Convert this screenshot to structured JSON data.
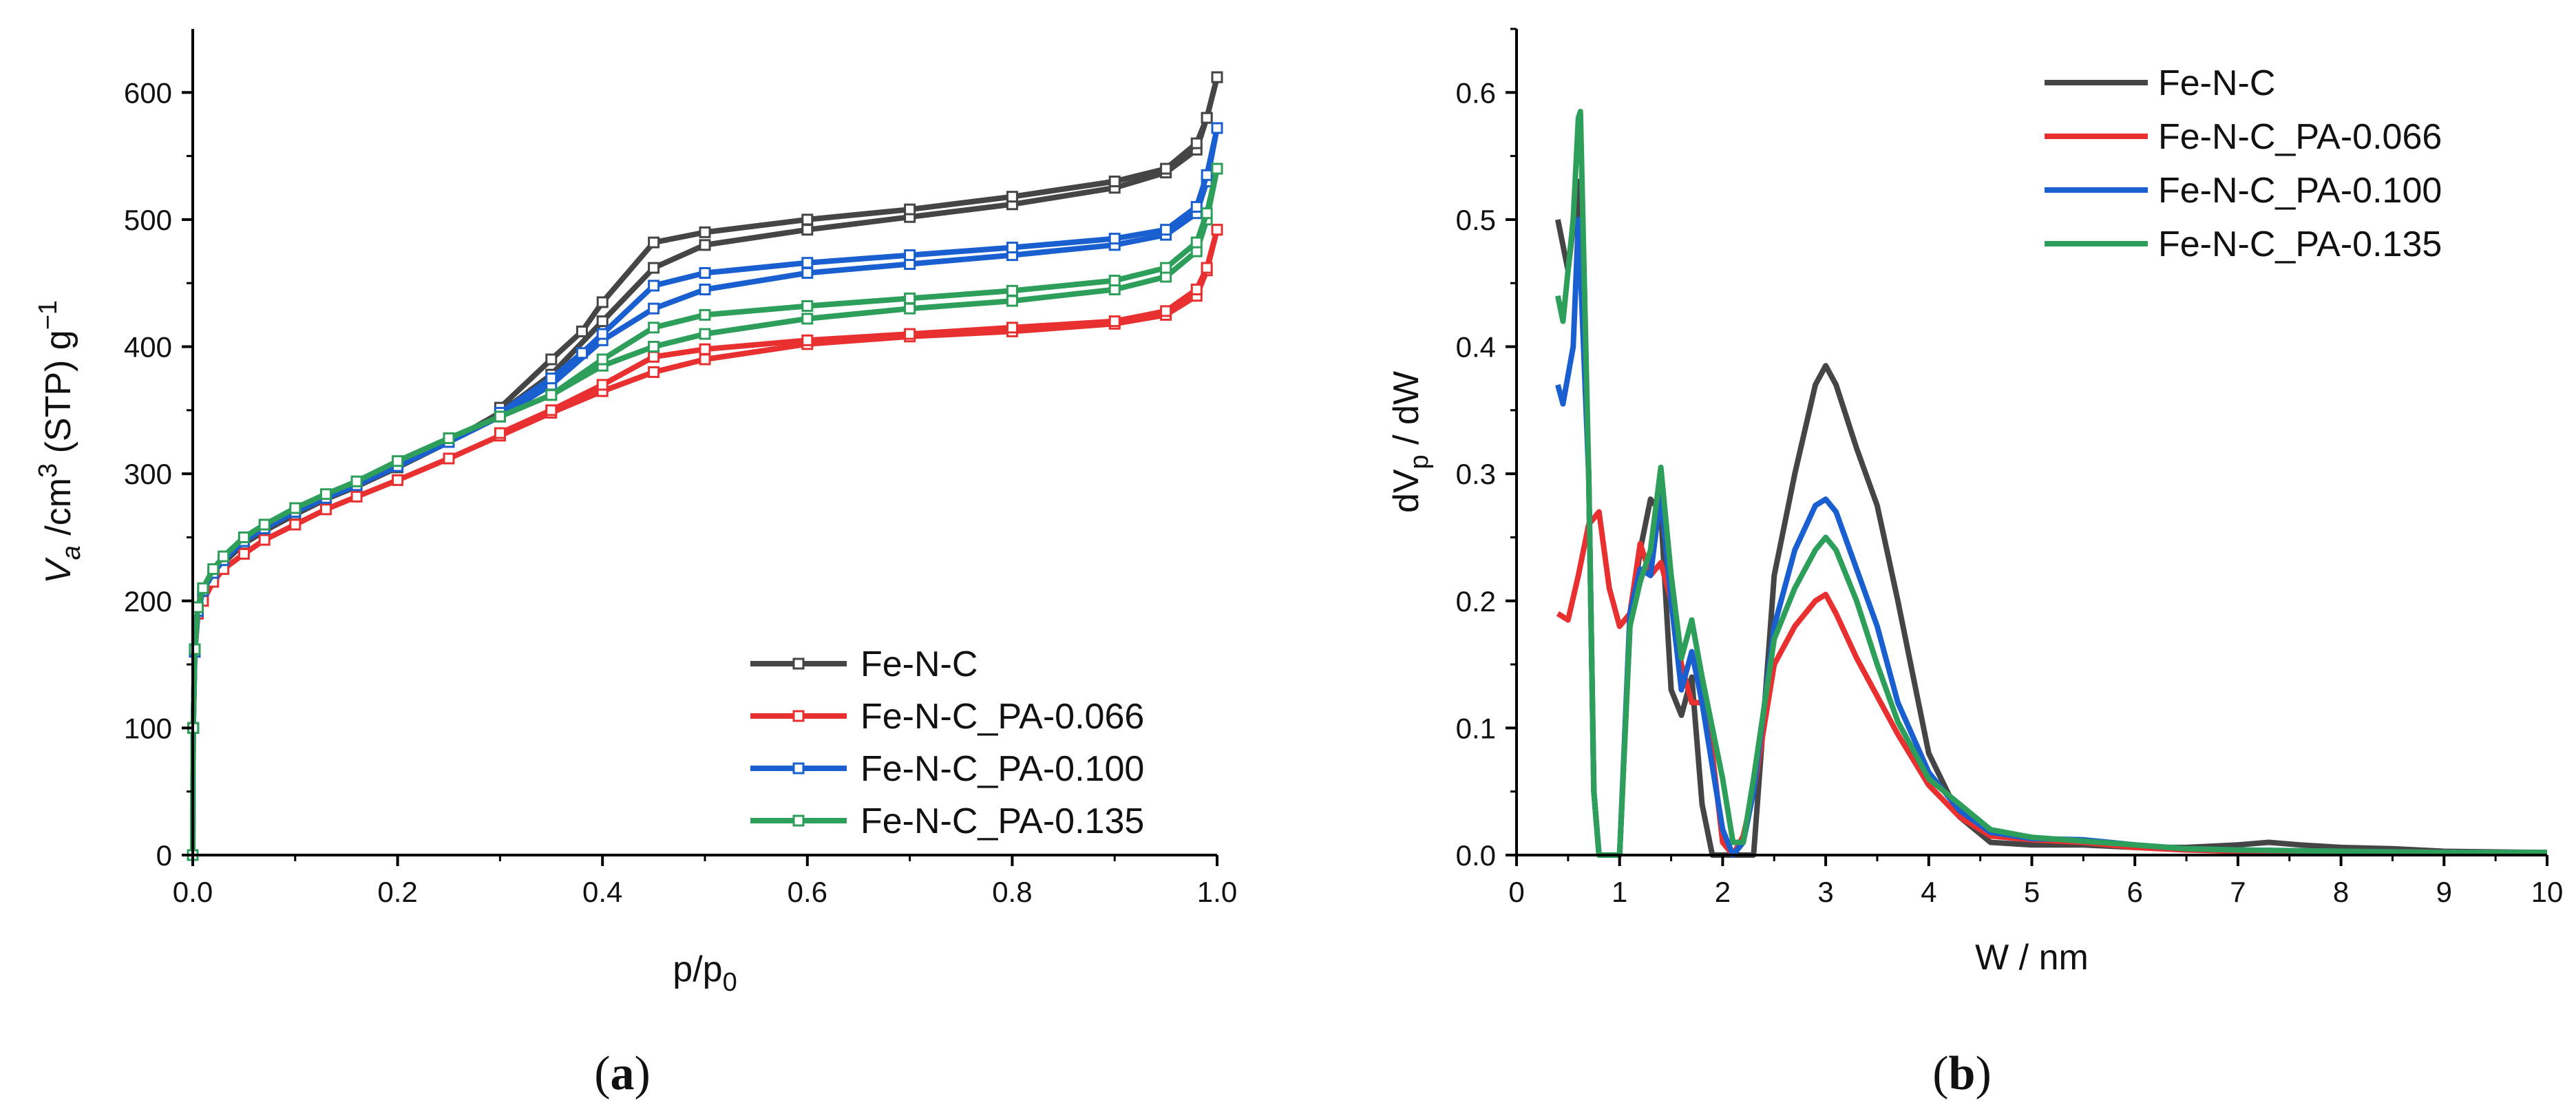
{
  "chart_data": [
    {
      "panel": "a",
      "type": "line",
      "caption_letter": "a",
      "xlabel_main": "p/p",
      "xlabel_sub": "0",
      "ylabel_parts": [
        "V",
        "a",
        " /cm",
        "3",
        " (STP) g",
        "−1"
      ],
      "xlim": [
        0,
        1.0
      ],
      "ylim": [
        0,
        650
      ],
      "xticks": [
        "0.0",
        "0.2",
        "0.4",
        "0.6",
        "0.8",
        "1.0"
      ],
      "yticks": [
        "0",
        "100",
        "200",
        "300",
        "400",
        "500",
        "600"
      ],
      "legend_position": "bottom-right",
      "series": [
        {
          "name": "Fe-N-C",
          "color": "#454545",
          "adsorption": {
            "x": [
              0,
              0.0005,
              0.002,
              0.005,
              0.01,
              0.02,
              0.03,
              0.05,
              0.07,
              0.1,
              0.13,
              0.16,
              0.2,
              0.25,
              0.3,
              0.35,
              0.4,
              0.45,
              0.5,
              0.6,
              0.7,
              0.8,
              0.9,
              0.95,
              0.98,
              0.99,
              1.0
            ],
            "y": [
              0,
              100,
              160,
              190,
              205,
              220,
              230,
              245,
              255,
              268,
              280,
              290,
              305,
              325,
              348,
              378,
              420,
              462,
              480,
              492,
              502,
              512,
              525,
              537,
              555,
              580,
              612
            ]
          },
          "desorption": {
            "x": [
              1.0,
              0.99,
              0.98,
              0.95,
              0.9,
              0.8,
              0.7,
              0.6,
              0.5,
              0.45,
              0.4,
              0.38,
              0.35,
              0.3
            ],
            "y": [
              612,
              580,
              560,
              540,
              530,
              518,
              508,
              500,
              490,
              482,
              435,
              412,
              390,
              352
            ]
          }
        },
        {
          "name": "Fe-N-C_PA-0.066",
          "color": "#e83030",
          "adsorption": {
            "x": [
              0,
              0.0005,
              0.002,
              0.005,
              0.01,
              0.02,
              0.03,
              0.05,
              0.07,
              0.1,
              0.13,
              0.16,
              0.2,
              0.25,
              0.3,
              0.35,
              0.4,
              0.45,
              0.5,
              0.6,
              0.7,
              0.8,
              0.9,
              0.95,
              0.98,
              0.99,
              1.0
            ],
            "y": [
              0,
              100,
              160,
              190,
              200,
              215,
              225,
              237,
              248,
              260,
              272,
              282,
              295,
              312,
              330,
              348,
              365,
              380,
              390,
              402,
              408,
              412,
              418,
              425,
              440,
              460,
              492
            ]
          },
          "desorption": {
            "x": [
              1.0,
              0.99,
              0.98,
              0.95,
              0.9,
              0.8,
              0.7,
              0.6,
              0.5,
              0.45,
              0.4,
              0.35,
              0.3
            ],
            "y": [
              492,
              462,
              445,
              428,
              420,
              415,
              410,
              405,
              398,
              392,
              370,
              350,
              332
            ]
          }
        },
        {
          "name": "Fe-N-C_PA-0.100",
          "color": "#1a5fd0",
          "adsorption": {
            "x": [
              0,
              0.0005,
              0.002,
              0.005,
              0.01,
              0.02,
              0.03,
              0.05,
              0.07,
              0.1,
              0.13,
              0.16,
              0.2,
              0.25,
              0.3,
              0.35,
              0.4,
              0.45,
              0.5,
              0.6,
              0.7,
              0.8,
              0.9,
              0.95,
              0.98,
              0.99,
              1.0
            ],
            "y": [
              0,
              100,
              160,
              192,
              208,
              222,
              232,
              247,
              257,
              270,
              281,
              291,
              306,
              325,
              345,
              370,
              405,
              430,
              445,
              458,
              465,
              472,
              480,
              488,
              505,
              530,
              572
            ]
          },
          "desorption": {
            "x": [
              1.0,
              0.99,
              0.98,
              0.95,
              0.9,
              0.8,
              0.7,
              0.6,
              0.5,
              0.45,
              0.4,
              0.38,
              0.35,
              0.3
            ],
            "y": [
              572,
              535,
              510,
              492,
              485,
              478,
              472,
              466,
              458,
              448,
              410,
              395,
              375,
              348
            ]
          }
        },
        {
          "name": "Fe-N-C_PA-0.135",
          "color": "#2e9e5b",
          "adsorption": {
            "x": [
              0,
              0.0005,
              0.002,
              0.005,
              0.01,
              0.02,
              0.03,
              0.05,
              0.07,
              0.1,
              0.13,
              0.16,
              0.2,
              0.25,
              0.3,
              0.35,
              0.4,
              0.45,
              0.5,
              0.6,
              0.7,
              0.8,
              0.9,
              0.95,
              0.98,
              0.99,
              1.0
            ],
            "y": [
              0,
              100,
              162,
              195,
              210,
              225,
              235,
              250,
              260,
              273,
              284,
              294,
              310,
              328,
              345,
              362,
              385,
              400,
              410,
              422,
              430,
              436,
              445,
              455,
              475,
              500,
              540
            ]
          },
          "desorption": {
            "x": [
              1.0,
              0.99,
              0.98,
              0.95,
              0.9,
              0.8,
              0.7,
              0.6,
              0.5,
              0.45,
              0.4,
              0.35,
              0.3
            ],
            "y": [
              540,
              505,
              482,
              462,
              452,
              444,
              438,
              432,
              425,
              415,
              390,
              362,
              345
            ]
          }
        }
      ]
    },
    {
      "panel": "b",
      "type": "line",
      "caption_letter": "b",
      "xlabel": "W / nm",
      "ylabel_parts": [
        "dV",
        "p",
        " / dW"
      ],
      "xlim": [
        0,
        10
      ],
      "ylim": [
        0,
        0.65
      ],
      "xticks": [
        "0",
        "1",
        "2",
        "3",
        "4",
        "5",
        "6",
        "7",
        "8",
        "9",
        "10"
      ],
      "yticks": [
        "0.0",
        "0.1",
        "0.2",
        "0.3",
        "0.4",
        "0.5",
        "0.6"
      ],
      "legend_position": "top-right",
      "series": [
        {
          "name": "Fe-N-C",
          "color": "#454545",
          "x": [
            0.4,
            0.5,
            0.6,
            0.7,
            0.75,
            0.8,
            0.9,
            1.0,
            1.1,
            1.2,
            1.3,
            1.4,
            1.5,
            1.6,
            1.7,
            1.8,
            1.9,
            2.0,
            2.1,
            2.2,
            2.3,
            2.5,
            2.7,
            2.9,
            3.0,
            3.1,
            3.3,
            3.5,
            3.7,
            4.0,
            4.3,
            4.6,
            5.0,
            5.5,
            6.0,
            6.5,
            7.0,
            7.3,
            7.6,
            8.0,
            8.5,
            9.0,
            10.0
          ],
          "y": [
            0.5,
            0.46,
            0.53,
            0.3,
            0.05,
            0.0,
            0.0,
            0.0,
            0.18,
            0.24,
            0.28,
            0.27,
            0.13,
            0.11,
            0.14,
            0.04,
            0.0,
            0.0,
            0.0,
            0.0,
            0.0,
            0.22,
            0.3,
            0.37,
            0.385,
            0.37,
            0.32,
            0.275,
            0.2,
            0.08,
            0.03,
            0.01,
            0.008,
            0.008,
            0.006,
            0.006,
            0.008,
            0.01,
            0.008,
            0.006,
            0.005,
            0.003,
            0.002
          ]
        },
        {
          "name": "Fe-N-C_PA-0.066",
          "color": "#e83030",
          "x": [
            0.4,
            0.5,
            0.6,
            0.7,
            0.8,
            0.9,
            1.0,
            1.1,
            1.2,
            1.3,
            1.4,
            1.5,
            1.6,
            1.7,
            1.8,
            1.9,
            2.0,
            2.1,
            2.2,
            2.3,
            2.5,
            2.7,
            2.9,
            3.0,
            3.1,
            3.3,
            3.5,
            3.7,
            4.0,
            4.3,
            4.6,
            5.0,
            5.5,
            6.0,
            6.5,
            7.0,
            8.0,
            9.0,
            10.0
          ],
          "y": [
            0.19,
            0.185,
            0.22,
            0.26,
            0.27,
            0.21,
            0.18,
            0.19,
            0.245,
            0.22,
            0.23,
            0.2,
            0.15,
            0.12,
            0.12,
            0.08,
            0.01,
            0.0,
            0.015,
            0.05,
            0.15,
            0.18,
            0.2,
            0.205,
            0.19,
            0.155,
            0.125,
            0.095,
            0.055,
            0.03,
            0.015,
            0.012,
            0.01,
            0.006,
            0.004,
            0.003,
            0.003,
            0.002,
            0.002
          ]
        },
        {
          "name": "Fe-N-C_PA-0.100",
          "color": "#1a5fd0",
          "x": [
            0.4,
            0.45,
            0.55,
            0.6,
            0.7,
            0.75,
            0.8,
            0.9,
            1.0,
            1.1,
            1.2,
            1.3,
            1.4,
            1.5,
            1.6,
            1.7,
            1.8,
            1.9,
            2.0,
            2.1,
            2.2,
            2.3,
            2.5,
            2.7,
            2.9,
            3.0,
            3.1,
            3.3,
            3.5,
            3.7,
            4.0,
            4.3,
            4.6,
            5.0,
            5.5,
            6.0,
            6.5,
            7.0,
            8.0,
            9.0,
            10.0
          ],
          "y": [
            0.37,
            0.355,
            0.4,
            0.5,
            0.3,
            0.05,
            0.0,
            0.0,
            0.0,
            0.19,
            0.225,
            0.22,
            0.285,
            0.2,
            0.13,
            0.16,
            0.12,
            0.07,
            0.02,
            0.0,
            0.01,
            0.05,
            0.18,
            0.24,
            0.275,
            0.28,
            0.27,
            0.225,
            0.18,
            0.12,
            0.065,
            0.035,
            0.018,
            0.013,
            0.012,
            0.008,
            0.005,
            0.004,
            0.003,
            0.002,
            0.002
          ]
        },
        {
          "name": "Fe-N-C_PA-0.135",
          "color": "#2e9e5b",
          "x": [
            0.4,
            0.45,
            0.55,
            0.6,
            0.62,
            0.7,
            0.75,
            0.8,
            0.9,
            1.0,
            1.1,
            1.2,
            1.3,
            1.4,
            1.5,
            1.6,
            1.7,
            1.8,
            1.9,
            2.0,
            2.1,
            2.2,
            2.3,
            2.5,
            2.7,
            2.9,
            3.0,
            3.1,
            3.3,
            3.5,
            3.7,
            4.0,
            4.3,
            4.6,
            5.0,
            5.5,
            6.0,
            6.5,
            7.0,
            8.0,
            9.0,
            10.0
          ],
          "y": [
            0.44,
            0.42,
            0.5,
            0.58,
            0.585,
            0.3,
            0.05,
            0.0,
            0.0,
            0.0,
            0.18,
            0.215,
            0.24,
            0.305,
            0.22,
            0.155,
            0.185,
            0.14,
            0.1,
            0.06,
            0.01,
            0.01,
            0.06,
            0.17,
            0.21,
            0.24,
            0.25,
            0.24,
            0.2,
            0.15,
            0.105,
            0.06,
            0.04,
            0.02,
            0.014,
            0.011,
            0.008,
            0.005,
            0.004,
            0.003,
            0.002,
            0.002
          ]
        }
      ]
    }
  ]
}
